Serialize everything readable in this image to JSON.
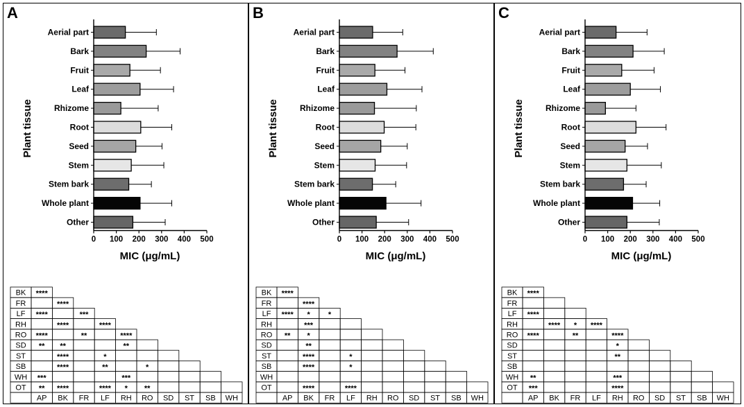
{
  "figure": {
    "ylabel": "Plant tissue",
    "xlabel": "MIC (μg/mL)",
    "xticks": [
      "0",
      "100",
      "200",
      "300",
      "400",
      "500"
    ]
  },
  "chart_data": [
    {
      "type": "bar",
      "orientation": "horizontal",
      "panel": "A",
      "categories": [
        "Aerial part",
        "Bark",
        "Fruit",
        "Leaf",
        "Rhizome",
        "Root",
        "Seed",
        "Stem",
        "Stem bark",
        "Whole plant",
        "Other"
      ],
      "values": [
        140,
        232,
        160,
        205,
        120,
        208,
        186,
        166,
        155,
        205,
        173
      ],
      "errors": [
        137,
        150,
        135,
        148,
        165,
        137,
        116,
        144,
        100,
        140,
        143
      ],
      "bar_colors": [
        "#6b6b6b",
        "#828282",
        "#a9a9a9",
        "#9d9d9d",
        "#9a9a9a",
        "#dcdcdc",
        "#a5a5a5",
        "#e6e6e6",
        "#6d6d6d",
        "#050505",
        "#666666"
      ],
      "xlabel": "MIC (μg/mL)",
      "ylabel": "Plant tissue",
      "xlim": [
        0,
        500
      ],
      "significance": {
        "rows": [
          "BK",
          "FR",
          "LF",
          "RH",
          "RO",
          "SD",
          "ST",
          "SB",
          "WH",
          "OT"
        ],
        "cols": [
          "AP",
          "BK",
          "FR",
          "LF",
          "RH",
          "RO",
          "SD",
          "ST",
          "SB",
          "WH"
        ],
        "cells": [
          [
            "****"
          ],
          [
            "",
            "****"
          ],
          [
            "****",
            "",
            "***"
          ],
          [
            "",
            "****",
            "",
            "****"
          ],
          [
            "****",
            "",
            "**",
            "",
            "****"
          ],
          [
            "**",
            "**",
            "",
            "",
            "**",
            ""
          ],
          [
            "",
            "****",
            "",
            "*",
            "",
            "",
            ""
          ],
          [
            "",
            "****",
            "",
            "**",
            "",
            "*",
            "",
            ""
          ],
          [
            "***",
            "",
            "",
            "",
            "***",
            "",
            "",
            "",
            ""
          ],
          [
            "**",
            "****",
            "",
            "****",
            "*",
            "**",
            "",
            "",
            "",
            ""
          ]
        ]
      }
    },
    {
      "type": "bar",
      "orientation": "horizontal",
      "panel": "B",
      "categories": [
        "Aerial part",
        "Bark",
        "Fruit",
        "Leaf",
        "Rhizome",
        "Root",
        "Seed",
        "Stem",
        "Stem bark",
        "Whole plant",
        "Other"
      ],
      "values": [
        147,
        255,
        157,
        210,
        155,
        198,
        183,
        158,
        146,
        206,
        163
      ],
      "errors": [
        133,
        160,
        133,
        155,
        185,
        140,
        117,
        139,
        103,
        155,
        143
      ],
      "bar_colors": [
        "#6b6b6b",
        "#828282",
        "#a9a9a9",
        "#9d9d9d",
        "#9a9a9a",
        "#dcdcdc",
        "#a5a5a5",
        "#e6e6e6",
        "#6d6d6d",
        "#050505",
        "#666666"
      ],
      "xlabel": "MIC (μg/mL)",
      "ylabel": "Plant tissue",
      "xlim": [
        0,
        500
      ],
      "significance": {
        "rows": [
          "BK",
          "FR",
          "LF",
          "RH",
          "RO",
          "SD",
          "ST",
          "SB",
          "WH",
          "OT"
        ],
        "cols": [
          "AP",
          "BK",
          "FR",
          "LF",
          "RH",
          "RO",
          "SD",
          "ST",
          "SB",
          "WH"
        ],
        "cells": [
          [
            "****"
          ],
          [
            "",
            "****"
          ],
          [
            "****",
            "*",
            "*"
          ],
          [
            "",
            "***",
            "",
            ""
          ],
          [
            "**",
            "*",
            "",
            "",
            ""
          ],
          [
            "",
            "**",
            "",
            "",
            "",
            ""
          ],
          [
            "",
            "****",
            "",
            "*",
            "",
            "",
            ""
          ],
          [
            "",
            "****",
            "",
            "*",
            "",
            "",
            "",
            ""
          ],
          [
            "",
            "",
            "",
            "",
            "",
            "",
            "",
            "",
            ""
          ],
          [
            "",
            "****",
            "",
            "****",
            "",
            "",
            "",
            "",
            "",
            ""
          ]
        ]
      }
    },
    {
      "type": "bar",
      "orientation": "horizontal",
      "panel": "C",
      "categories": [
        "Aerial part",
        "Bark",
        "Fruit",
        "Leaf",
        "Rhizome",
        "Root",
        "Seed",
        "Stem",
        "Stem bark",
        "Whole plant",
        "Other"
      ],
      "values": [
        137,
        212,
        162,
        200,
        90,
        225,
        177,
        185,
        170,
        210,
        185
      ],
      "errors": [
        137,
        138,
        143,
        133,
        135,
        133,
        99,
        152,
        100,
        120,
        143
      ],
      "bar_colors": [
        "#6b6b6b",
        "#828282",
        "#a9a9a9",
        "#9d9d9d",
        "#9a9a9a",
        "#dcdcdc",
        "#a5a5a5",
        "#e6e6e6",
        "#6d6d6d",
        "#050505",
        "#666666"
      ],
      "xlabel": "MIC (μg/mL)",
      "ylabel": "Plant tissue",
      "xlim": [
        0,
        500
      ],
      "significance": {
        "rows": [
          "BK",
          "FR",
          "LF",
          "RH",
          "RO",
          "SD",
          "ST",
          "SB",
          "WH",
          "OT"
        ],
        "cols": [
          "AP",
          "BK",
          "FR",
          "LF",
          "RH",
          "RO",
          "SD",
          "ST",
          "SB",
          "WH"
        ],
        "cells": [
          [
            "****"
          ],
          [
            "",
            ""
          ],
          [
            "****",
            "",
            ""
          ],
          [
            "",
            "****",
            "*",
            "****"
          ],
          [
            "****",
            "",
            "**",
            "",
            "****"
          ],
          [
            "",
            "",
            "",
            "",
            "*",
            ""
          ],
          [
            "",
            "",
            "",
            "",
            "**",
            "",
            ""
          ],
          [
            "",
            "",
            "",
            "",
            "",
            "",
            "",
            ""
          ],
          [
            "**",
            "",
            "",
            "",
            "***",
            "",
            "",
            "",
            ""
          ],
          [
            "***",
            "",
            "",
            "",
            "****",
            "",
            "",
            "",
            "",
            ""
          ]
        ]
      }
    }
  ]
}
